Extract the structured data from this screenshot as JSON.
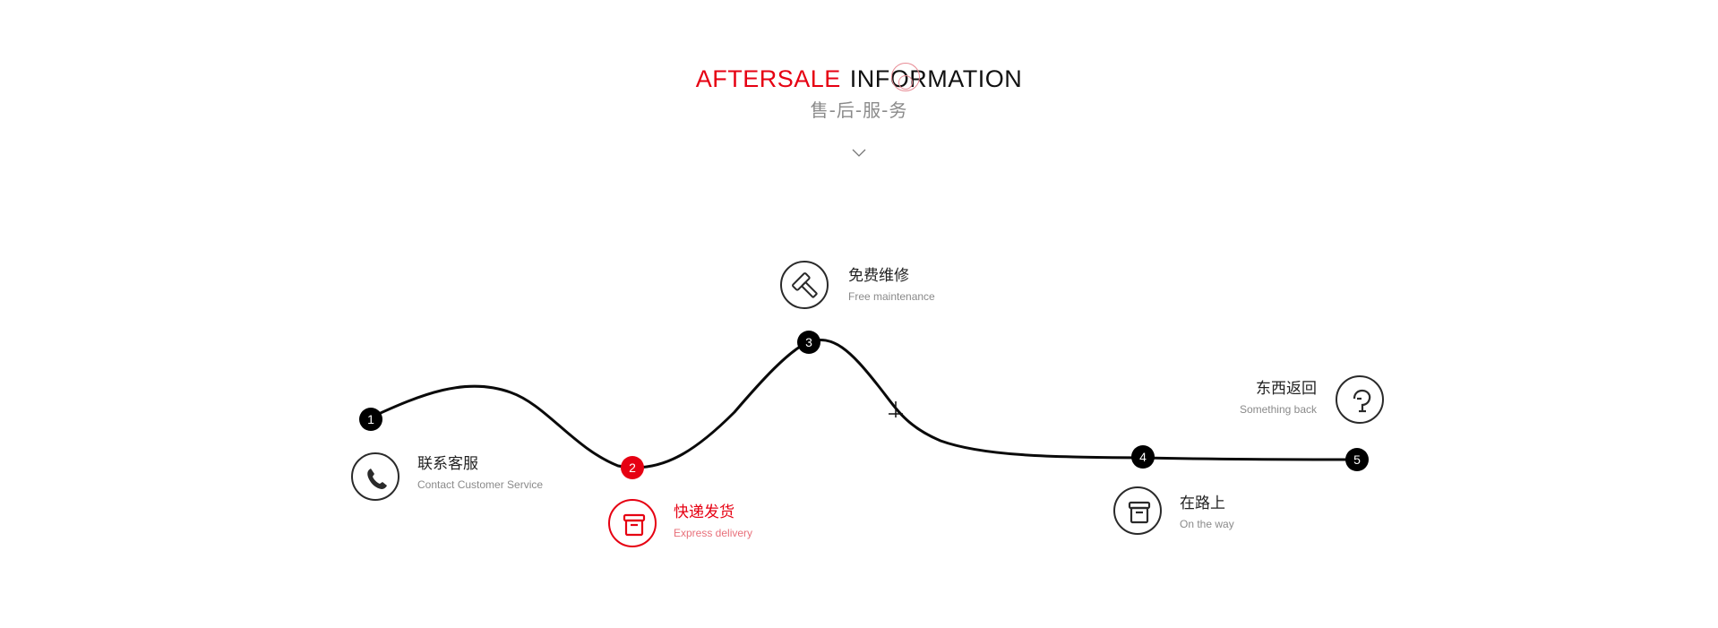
{
  "header": {
    "title_red": "AFTERSALE",
    "title_black": "INFORMATION",
    "subtitle": "售-后-服-务"
  },
  "icons": {
    "down_arrow": "chevron-down-icon",
    "step1": "phone-icon",
    "step2": "box-icon",
    "step3": "hammer-icon",
    "step4": "box-icon",
    "step5": "pin-icon"
  },
  "colors": {
    "accent": "#e60012",
    "text": "#222222",
    "muted": "#8a8a8a"
  },
  "steps": [
    {
      "number": "1",
      "cn": "联系客服",
      "en": "Contact Customer Service",
      "active": false
    },
    {
      "number": "2",
      "cn": "快递发货",
      "en": "Express delivery",
      "active": true
    },
    {
      "number": "3",
      "cn": "免费维修",
      "en": "Free  maintenance",
      "active": false
    },
    {
      "number": "4",
      "cn": "在路上",
      "en": "On the way",
      "active": false
    },
    {
      "number": "5",
      "cn": "东西返回",
      "en": "Something back",
      "active": false
    }
  ]
}
